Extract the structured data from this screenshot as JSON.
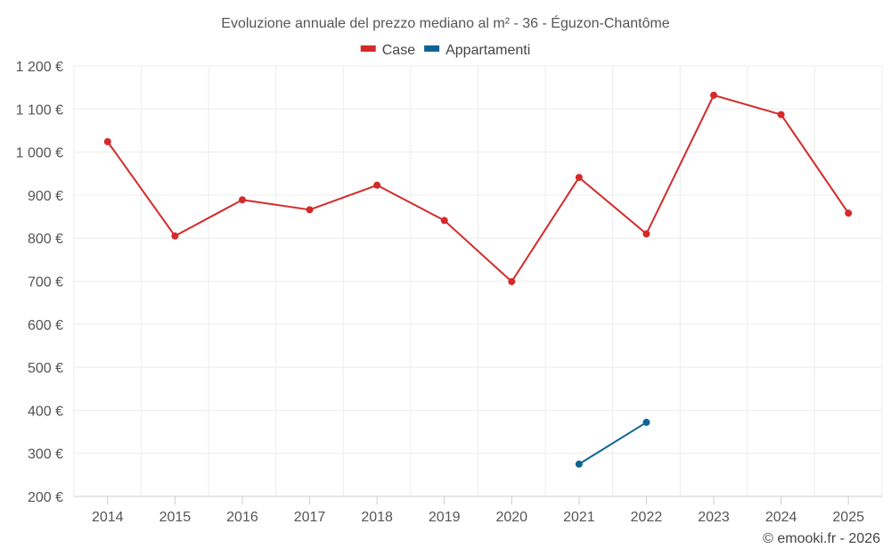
{
  "chart_data": {
    "type": "line",
    "title": "Evoluzione annuale del prezzo mediano al m² - 36 - Éguzon-Chantôme",
    "categories": [
      "2014",
      "2015",
      "2016",
      "2017",
      "2018",
      "2019",
      "2020",
      "2021",
      "2022",
      "2023",
      "2024",
      "2025"
    ],
    "ylim": [
      200,
      1200
    ],
    "yticks": [
      200,
      300,
      400,
      500,
      600,
      700,
      800,
      900,
      1000,
      1100,
      1200
    ],
    "ytick_labels": [
      "200 €",
      "300 €",
      "400 €",
      "500 €",
      "600 €",
      "700 €",
      "800 €",
      "900 €",
      "1 000 €",
      "1 100 €",
      "1 200 €"
    ],
    "xlabel": "",
    "ylabel": "",
    "grid": true,
    "legend_position": "top-center",
    "series": [
      {
        "name": "Case",
        "color": "#d32a2a",
        "values": [
          1024,
          805,
          889,
          866,
          923,
          841,
          699,
          941,
          810,
          1132,
          1087,
          858
        ]
      },
      {
        "name": "Appartamenti",
        "color": "#0f6496",
        "values": [
          null,
          null,
          null,
          null,
          null,
          null,
          null,
          275,
          372,
          null,
          null,
          null
        ]
      }
    ]
  },
  "credit": "© emooki.fr - 2026"
}
